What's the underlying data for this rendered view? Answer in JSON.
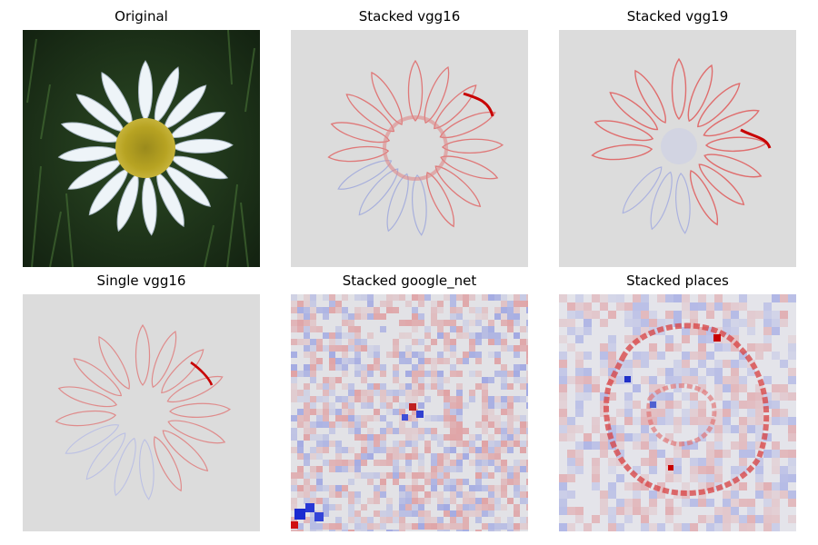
{
  "panels": [
    {
      "title": "Original"
    },
    {
      "title": "Stacked vgg16"
    },
    {
      "title": "Stacked vgg19"
    },
    {
      "title": "Single vgg16"
    },
    {
      "title": "Stacked google_net"
    },
    {
      "title": "Stacked places"
    }
  ],
  "colors": {
    "background_gray": "#dcdcdc",
    "positive_red": "#d40000",
    "negative_blue": "#2030c8",
    "grass_dark": "#1c3118",
    "petal_white": "#eef4f8",
    "center_yellow": "#b7a322"
  }
}
